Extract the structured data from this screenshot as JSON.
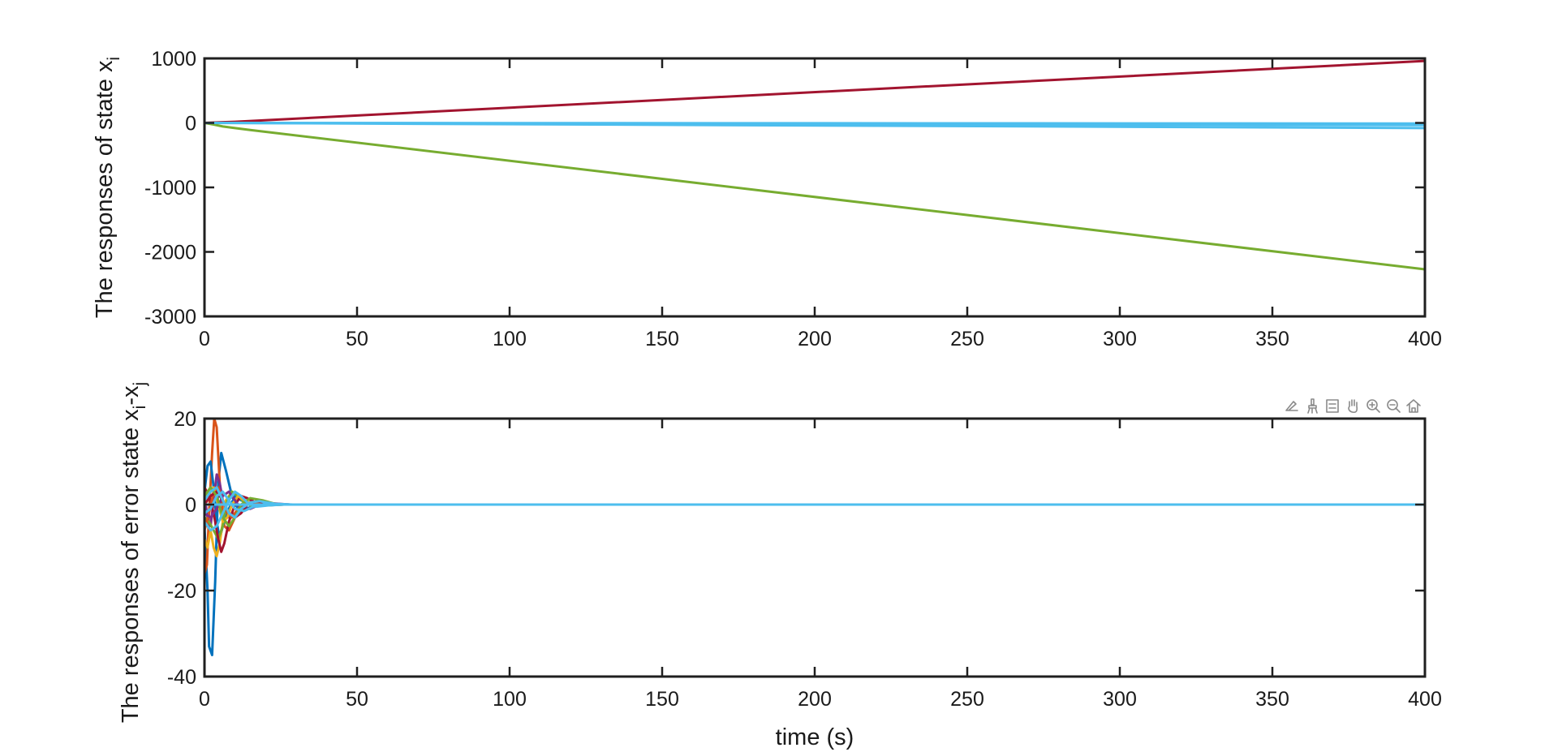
{
  "chart_data": [
    {
      "type": "line",
      "title": "",
      "xlabel": "",
      "ylabel": "The responses of state x",
      "ylabel_subscript": "i",
      "xlim": [
        0,
        400
      ],
      "ylim": [
        -3000,
        1000
      ],
      "xticks": [
        0,
        50,
        100,
        150,
        200,
        250,
        300,
        350,
        400
      ],
      "yticks": [
        -3000,
        -2000,
        -1000,
        0,
        1000
      ],
      "grid": false,
      "legend": "none",
      "series": [
        {
          "color": "#A2142F",
          "x": [
            0,
            5,
            10,
            400
          ],
          "y": [
            0,
            10,
            18,
            960
          ]
        },
        {
          "color": "#77AC30",
          "x": [
            0,
            3,
            6,
            10,
            15,
            400
          ],
          "y": [
            0,
            -25,
            -55,
            -80,
            -110,
            -2270
          ]
        },
        {
          "color": "#4DBEEE",
          "x": [
            0,
            400
          ],
          "y": [
            0,
            -10
          ]
        },
        {
          "color": "#4DBEEE",
          "x": [
            0,
            400
          ],
          "y": [
            0,
            -35
          ]
        },
        {
          "color": "#4DBEEE",
          "x": [
            0,
            400
          ],
          "y": [
            0,
            -80
          ]
        }
      ]
    },
    {
      "type": "line",
      "title": "",
      "xlabel": "time (s)",
      "ylabel": "The responses of error state x",
      "ylabel_subscripts": [
        "i",
        "j"
      ],
      "ylabel_separator": "-x",
      "xlim": [
        0,
        400
      ],
      "ylim": [
        -40,
        20
      ],
      "xticks": [
        0,
        50,
        100,
        150,
        200,
        250,
        300,
        350,
        400
      ],
      "yticks": [
        -40,
        -20,
        0,
        20
      ],
      "grid": false,
      "legend": "none",
      "series": [
        {
          "color": "#0072BD",
          "x": [
            0,
            1,
            1.5,
            2.5,
            3.5,
            4.5,
            5.5,
            7,
            9,
            11,
            14,
            18,
            22,
            28,
            400
          ],
          "y": [
            -5,
            -20,
            -33,
            -35,
            -18,
            5,
            12,
            8,
            2,
            -1,
            -0.8,
            -0.3,
            0.2,
            0,
            0
          ]
        },
        {
          "color": "#D95319",
          "x": [
            0,
            0.8,
            1.5,
            2.5,
            3.2,
            4,
            5,
            6.5,
            8,
            10,
            12,
            15,
            20,
            26,
            400
          ],
          "y": [
            -16,
            -14,
            -2,
            12,
            20,
            18,
            5,
            -5,
            -6,
            -3,
            -1,
            0.5,
            0.3,
            0,
            0
          ]
        },
        {
          "color": "#0072BD",
          "x": [
            0,
            1,
            2,
            3,
            4,
            5,
            6,
            8,
            10,
            12,
            15,
            20,
            26,
            400
          ],
          "y": [
            3,
            9,
            10,
            4,
            -4,
            -8,
            -5,
            -1,
            2,
            1,
            0.2,
            -0.2,
            0,
            0
          ]
        },
        {
          "color": "#EDB120",
          "x": [
            0,
            1,
            2,
            3,
            4,
            5,
            6,
            7,
            9,
            11,
            14,
            18,
            24,
            400
          ],
          "y": [
            -8,
            -10,
            -6,
            -10,
            -12,
            -9,
            -4,
            1,
            3,
            2,
            0.5,
            -0.3,
            0,
            0
          ]
        },
        {
          "color": "#7E2F8E",
          "x": [
            0,
            1,
            2,
            3,
            4,
            5,
            6,
            8,
            10,
            13,
            16,
            20,
            26,
            400
          ],
          "y": [
            2,
            -3,
            -5,
            1,
            7,
            5,
            1,
            -3,
            -2,
            0,
            0.4,
            0.1,
            0,
            0
          ]
        },
        {
          "color": "#77AC30",
          "x": [
            0,
            1.5,
            3,
            4.5,
            6,
            7.5,
            9,
            11,
            13,
            16,
            20,
            25,
            30,
            400
          ],
          "y": [
            -3,
            -4,
            -6,
            -8,
            -5,
            1,
            3,
            2,
            0.5,
            -0.5,
            -0.2,
            0,
            0,
            0
          ]
        },
        {
          "color": "#A2142F",
          "x": [
            0,
            1.5,
            3,
            4.5,
            5.5,
            6.5,
            8,
            10,
            12,
            14,
            17,
            21,
            26,
            400
          ],
          "y": [
            4,
            2,
            -2,
            -8,
            -11,
            -9,
            -4,
            0,
            2,
            1.5,
            0.4,
            0,
            0,
            0
          ]
        },
        {
          "color": "#D95319",
          "x": [
            0,
            1.5,
            3,
            4.5,
            6,
            7.5,
            9,
            11,
            13,
            16,
            20,
            26,
            400
          ],
          "y": [
            -6,
            -2,
            3,
            4,
            1,
            -2,
            -3,
            -1,
            0.5,
            0.6,
            0.1,
            0,
            0
          ]
        },
        {
          "color": "#EDB120",
          "x": [
            0,
            1.5,
            3,
            4.5,
            6,
            7.5,
            9,
            11,
            13,
            16,
            20,
            26,
            400
          ],
          "y": [
            1,
            3,
            4,
            0,
            -4,
            -3,
            0,
            2,
            1,
            0,
            -0.2,
            0,
            0
          ]
        },
        {
          "color": "#7E2F8E",
          "x": [
            0,
            2,
            4,
            6,
            8,
            10,
            12,
            15,
            18,
            22,
            28,
            400
          ],
          "y": [
            -2,
            -3,
            -1,
            2,
            3,
            1,
            -1,
            -1,
            0,
            0.3,
            0,
            0
          ]
        },
        {
          "color": "#A2142F",
          "x": [
            0,
            2,
            4,
            6,
            8,
            10,
            12,
            14,
            17,
            21,
            26,
            400
          ],
          "y": [
            0,
            2,
            3,
            1,
            -2,
            -3,
            -2,
            0,
            0.8,
            0.3,
            0,
            0
          ]
        },
        {
          "color": "#77AC30",
          "x": [
            0,
            2,
            4,
            6,
            8,
            10,
            12,
            15,
            19,
            24,
            30,
            400
          ],
          "y": [
            2,
            4,
            2,
            -3,
            -5,
            -3,
            0,
            1.5,
            1,
            0,
            0,
            0
          ]
        },
        {
          "color": "#4DBEEE",
          "x": [
            0,
            2,
            4,
            6,
            8,
            10,
            12,
            14,
            17,
            21,
            26,
            400
          ],
          "y": [
            -4,
            -6,
            -5,
            -2,
            1,
            3,
            2,
            0.5,
            -0.5,
            -0.2,
            0,
            0
          ]
        },
        {
          "color": "#4DBEEE",
          "x": [
            0,
            2,
            4,
            6,
            8,
            10,
            12,
            15,
            18,
            23,
            29,
            400
          ],
          "y": [
            1,
            3,
            4,
            1,
            -2,
            -3,
            -1,
            0.5,
            0.8,
            0.2,
            0,
            0
          ]
        },
        {
          "color": "#4DBEEE",
          "x": [
            0,
            2,
            4,
            6,
            8,
            10,
            13,
            16,
            20,
            26,
            400
          ],
          "y": [
            -2,
            -1,
            2,
            3,
            1,
            -1,
            -1.5,
            -0.5,
            0.2,
            0,
            0
          ]
        },
        {
          "color": "#4DBEEE",
          "x": [
            0,
            400
          ],
          "y": [
            0,
            0
          ]
        }
      ]
    }
  ],
  "toolbar": {
    "icons": [
      "data-tips-icon",
      "brush-icon",
      "legend-icon",
      "pan-icon",
      "zoom-in-icon",
      "zoom-out-icon",
      "home-icon"
    ]
  }
}
